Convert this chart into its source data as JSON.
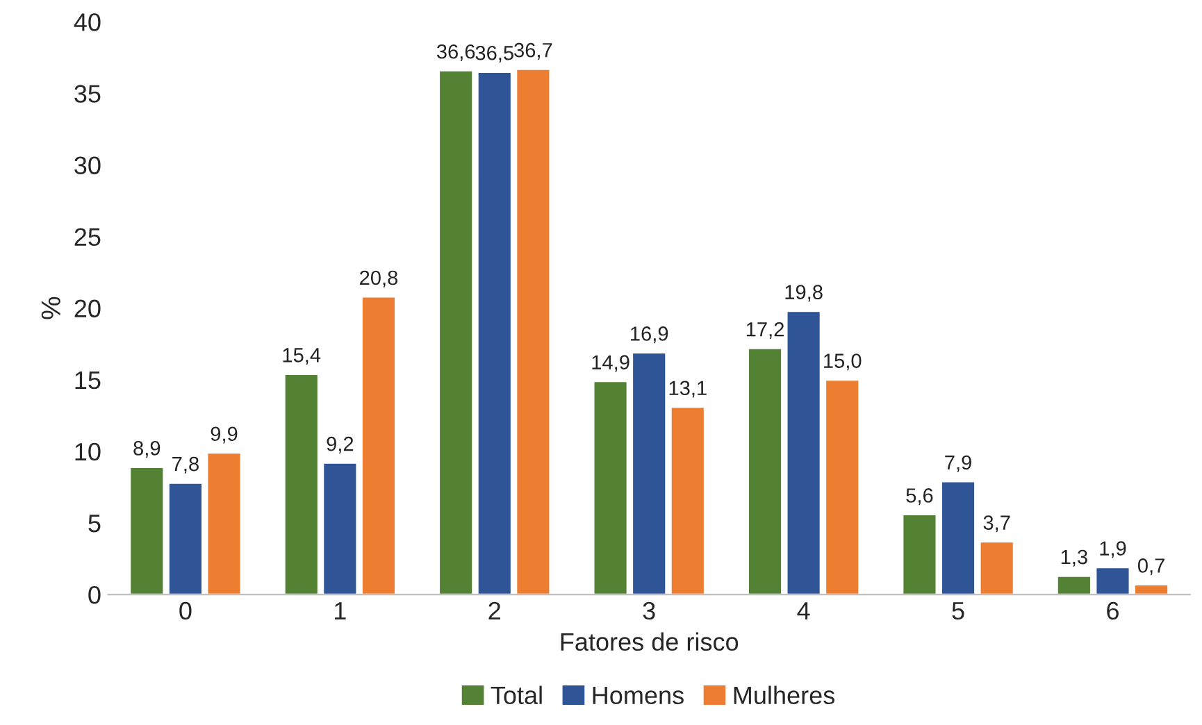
{
  "chart_data": {
    "type": "bar",
    "xlabel": "Fatores de risco",
    "ylabel": "%",
    "categories": [
      "0",
      "1",
      "2",
      "3",
      "4",
      "5",
      "6"
    ],
    "series": [
      {
        "name": "Total",
        "color": "#548235",
        "values": [
          8.9,
          15.4,
          36.6,
          14.9,
          17.2,
          5.6,
          1.3
        ],
        "value_labels": [
          "8,9",
          "15,4",
          "36,6",
          "14,9",
          "17,2",
          "5,6",
          "1,3"
        ]
      },
      {
        "name": "Homens",
        "color": "#2f5597",
        "values": [
          7.8,
          9.2,
          36.5,
          16.9,
          19.8,
          7.9,
          1.9
        ],
        "value_labels": [
          "7,8",
          "9,2",
          "36,5",
          "16,9",
          "19,8",
          "7,9",
          "1,9"
        ]
      },
      {
        "name": "Mulheres",
        "color": "#ed7d31",
        "values": [
          9.9,
          20.8,
          36.7,
          13.1,
          15.0,
          3.7,
          0.7
        ],
        "value_labels": [
          "9,9",
          "20,8",
          "36,7",
          "13,1",
          "15,0",
          "3,7",
          "0,7"
        ]
      }
    ],
    "ylim": [
      0,
      40
    ],
    "yticks": [
      0,
      5,
      10,
      15,
      20,
      25,
      30,
      35,
      40
    ],
    "grid": false,
    "legend": "bottom"
  }
}
